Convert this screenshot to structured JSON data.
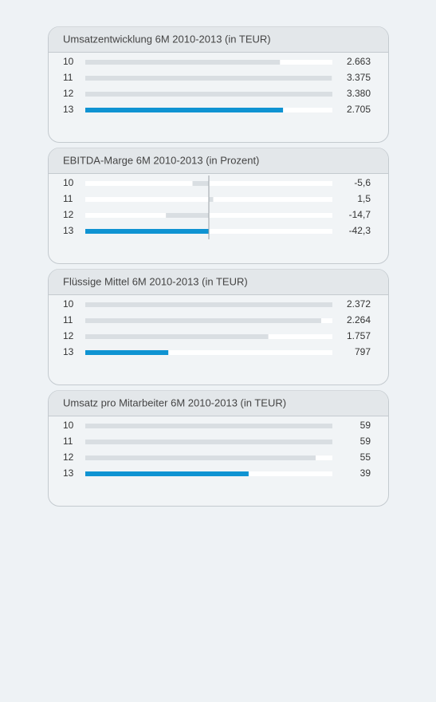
{
  "chart_data": [
    {
      "type": "bar",
      "orientation": "horizontal",
      "title": "Umsatzentwicklung 6M 2010-2013 (in TEUR)",
      "categories": [
        "10",
        "11",
        "12",
        "13"
      ],
      "values": [
        2663,
        3375,
        3380,
        2705
      ],
      "value_labels": [
        "2.663",
        "3.375",
        "3.380",
        "2.705"
      ],
      "colors": [
        "#d9dee2",
        "#d9dee2",
        "#d9dee2",
        "#0f93d2"
      ]
    },
    {
      "type": "bar",
      "orientation": "horizontal",
      "title": "EBITDA-Marge 6M 2010-2013 (in Prozent)",
      "categories": [
        "10",
        "11",
        "12",
        "13"
      ],
      "values": [
        -5.6,
        1.5,
        -14.7,
        -42.3
      ],
      "value_labels": [
        "-5,6",
        "1,5",
        "-14,7",
        "-42,3"
      ],
      "colors": [
        "#d9dee2",
        "#d9dee2",
        "#d9dee2",
        "#0f93d2"
      ]
    },
    {
      "type": "bar",
      "orientation": "horizontal",
      "title": "Flüssige Mittel 6M 2010-2013 (in TEUR)",
      "categories": [
        "10",
        "11",
        "12",
        "13"
      ],
      "values": [
        2372,
        2264,
        1757,
        797
      ],
      "value_labels": [
        "2.372",
        "2.264",
        "1.757",
        "797"
      ],
      "colors": [
        "#d9dee2",
        "#d9dee2",
        "#d9dee2",
        "#0f93d2"
      ]
    },
    {
      "type": "bar",
      "orientation": "horizontal",
      "title": "Umsatz pro Mitarbeiter 6M 2010-2013 (in TEUR)",
      "categories": [
        "10",
        "11",
        "12",
        "13"
      ],
      "values": [
        59,
        59,
        55,
        39
      ],
      "colors": [
        "#d9dee2",
        "#d9dee2",
        "#d9dee2",
        "#0f93d2"
      ]
    }
  ]
}
